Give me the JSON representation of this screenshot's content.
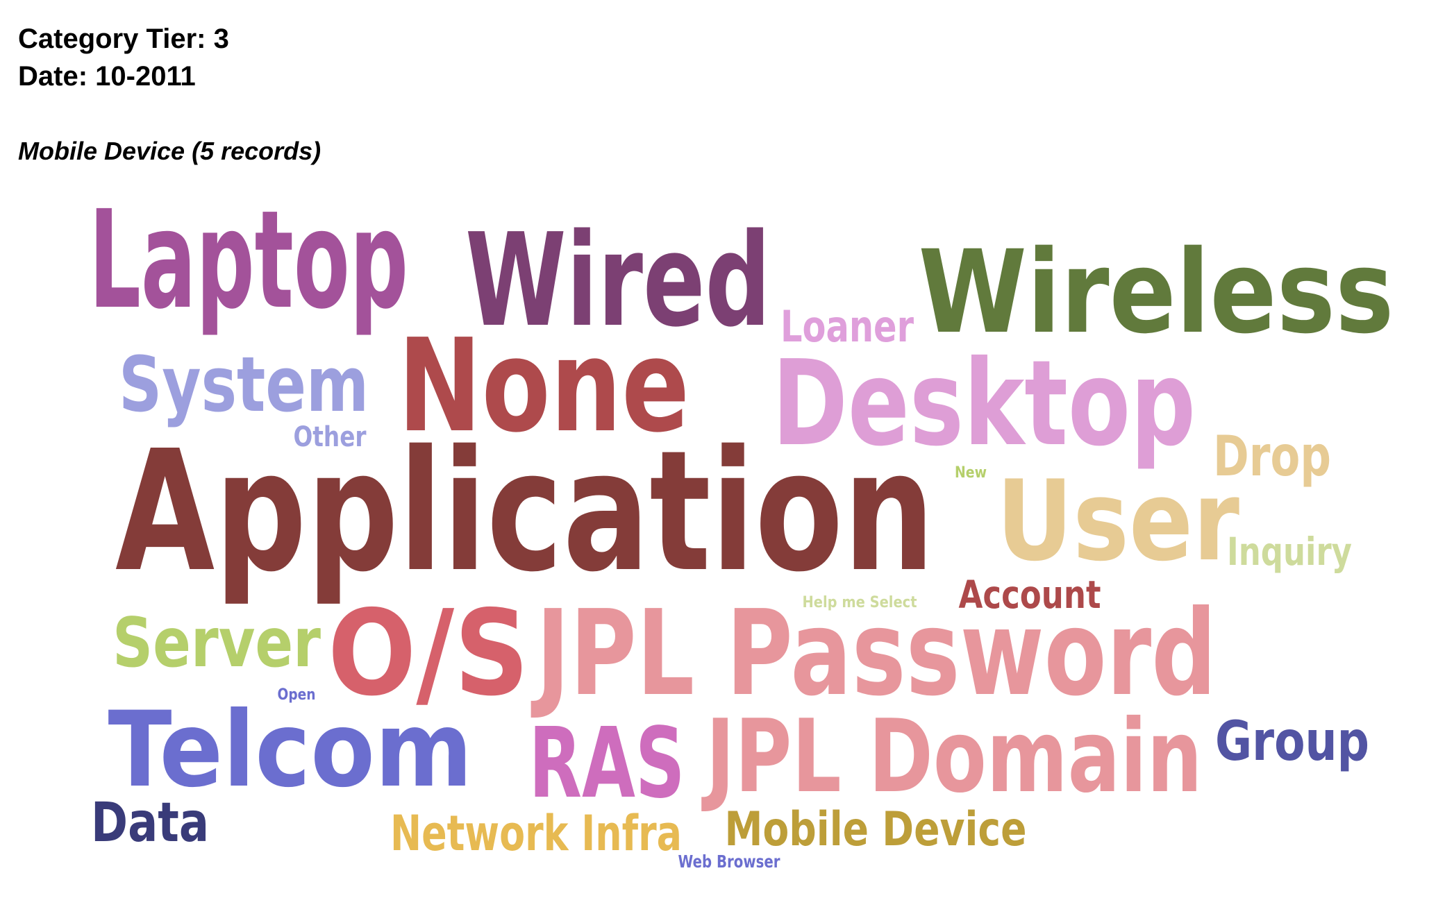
{
  "header": {
    "tier_line": "Category Tier: 3",
    "date_line": "Date: 10-2011",
    "subtitle": "Mobile Device (5 records)"
  },
  "cloud_words": [
    {
      "text": "Laptop",
      "color": "#A3529A"
    },
    {
      "text": "Wired",
      "color": "#7C4073"
    },
    {
      "text": "Wireless",
      "color": "#617A3C"
    },
    {
      "text": "Loaner",
      "color": "#DF9FDB"
    },
    {
      "text": "None",
      "color": "#AE4A4C"
    },
    {
      "text": "System",
      "color": "#9C9FDE"
    },
    {
      "text": "Desktop",
      "color": "#DE9ED6"
    },
    {
      "text": "Other",
      "color": "#9C9FDE"
    },
    {
      "text": "Drop",
      "color": "#E7CB94"
    },
    {
      "text": "New",
      "color": "#B5CF6B"
    },
    {
      "text": "Application",
      "color": "#843C39"
    },
    {
      "text": "User",
      "color": "#E7CB94"
    },
    {
      "text": "Inquiry",
      "color": "#CEDB9C"
    },
    {
      "text": "Account",
      "color": "#AD494A"
    },
    {
      "text": "Help me Select",
      "color": "#CEDB9C"
    },
    {
      "text": "Server",
      "color": "#B5CF6B"
    },
    {
      "text": "O/S",
      "color": "#D6616B"
    },
    {
      "text": "JPL Password",
      "color": "#E7969C"
    },
    {
      "text": "Open",
      "color": "#6B6ECF"
    },
    {
      "text": "Telcom",
      "color": "#6B6ECF"
    },
    {
      "text": "RAS",
      "color": "#CE6DBD"
    },
    {
      "text": "JPL Domain",
      "color": "#E7969C"
    },
    {
      "text": "Group",
      "color": "#5254A3"
    },
    {
      "text": "Data",
      "color": "#393B79"
    },
    {
      "text": "Network Infra",
      "color": "#E7BA52"
    },
    {
      "text": "Mobile Device",
      "color": "#BD9E39"
    },
    {
      "text": "Web Browser",
      "color": "#6B6ECF"
    }
  ]
}
